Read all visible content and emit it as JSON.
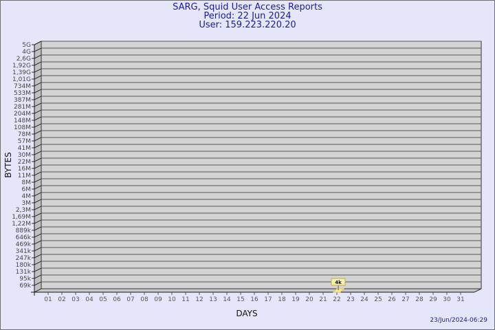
{
  "header": {
    "title": "SARG, Squid User Access Reports",
    "period": "Period: 22 Jun 2024",
    "user": "User: 159.223.220.20"
  },
  "footer": {
    "timestamp": "23/Jun/2024-06:29"
  },
  "colors": {
    "background": "#e6e6fa",
    "plot": "#d3d3d3",
    "bar": "#ffe88a",
    "title": "#1a1a9c"
  },
  "chart_data": {
    "type": "bar",
    "xlabel": "DAYS",
    "ylabel": "BYTES",
    "categories": [
      "01",
      "02",
      "03",
      "04",
      "05",
      "06",
      "07",
      "08",
      "09",
      "10",
      "11",
      "12",
      "13",
      "14",
      "15",
      "16",
      "17",
      "18",
      "19",
      "20",
      "21",
      "22",
      "23",
      "24",
      "25",
      "26",
      "27",
      "28",
      "29",
      "30",
      "31"
    ],
    "y_tick_labels": [
      "5G",
      "4G",
      "2,6G",
      "1,92G",
      "1,39G",
      "1,01G",
      "734M",
      "533M",
      "387M",
      "281M",
      "204M",
      "148M",
      "108M",
      "78M",
      "57M",
      "41M",
      "30M",
      "22M",
      "16M",
      "11M",
      "8M",
      "6M",
      "4M",
      "3M",
      "2,3M",
      "1,69M",
      "1,22M",
      "889k",
      "646k",
      "469k",
      "341k",
      "247k",
      "180k",
      "131k",
      "95k",
      "69k"
    ],
    "y_scale": "log",
    "grid": true,
    "series": [
      {
        "values": [
          null,
          null,
          null,
          null,
          null,
          null,
          null,
          null,
          null,
          null,
          null,
          null,
          null,
          null,
          null,
          null,
          null,
          null,
          null,
          null,
          null,
          4000,
          null,
          null,
          null,
          null,
          null,
          null,
          null,
          null,
          null
        ]
      }
    ],
    "data_labels": [
      {
        "category": "22",
        "label": "4k"
      }
    ]
  }
}
